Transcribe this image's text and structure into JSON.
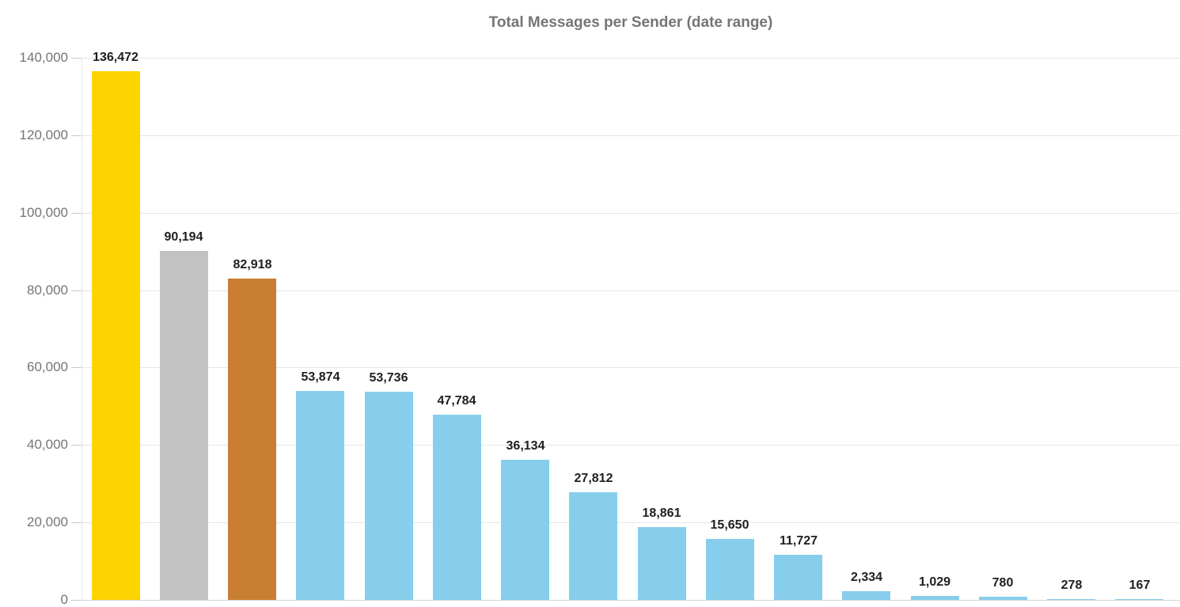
{
  "chart_data": {
    "type": "bar",
    "title": "Total Messages per Sender (date range)",
    "categories": [],
    "values": [
      136472,
      90194,
      82918,
      53874,
      53736,
      47784,
      36134,
      27812,
      18861,
      15650,
      11727,
      2334,
      1029,
      780,
      278,
      167
    ],
    "value_labels": [
      "136,472",
      "90,194",
      "82,918",
      "53,874",
      "53,736",
      "47,784",
      "36,134",
      "27,812",
      "18,861",
      "15,650",
      "11,727",
      "2,334",
      "1,029",
      "780",
      "278",
      "167"
    ],
    "bar_colors": [
      "#fdd400",
      "#c2c2c2",
      "#ca7e32",
      "#86ceec",
      "#86ceec",
      "#86ceec",
      "#86ceec",
      "#86ceec",
      "#86ceec",
      "#86ceec",
      "#86ceec",
      "#86ceec",
      "#86ceec",
      "#86ceec",
      "#86ceec",
      "#86ceec"
    ],
    "xlabel": "",
    "ylabel": "",
    "ylim": [
      0,
      140000
    ],
    "y_ticks": [
      {
        "value": 0,
        "label": "0"
      },
      {
        "value": 20000,
        "label": "20,000"
      },
      {
        "value": 40000,
        "label": "40,000"
      },
      {
        "value": 60000,
        "label": "60,000"
      },
      {
        "value": 80000,
        "label": "80,000"
      },
      {
        "value": 100000,
        "label": "100,000"
      },
      {
        "value": 120000,
        "label": "120,000"
      },
      {
        "value": 140000,
        "label": "140,000"
      }
    ],
    "grid": true,
    "legend": "none",
    "colors": {
      "title": "#757575",
      "gridline": "#e6e6e6",
      "tick_label": "#757575",
      "value_label": "#1f1f1f"
    }
  }
}
